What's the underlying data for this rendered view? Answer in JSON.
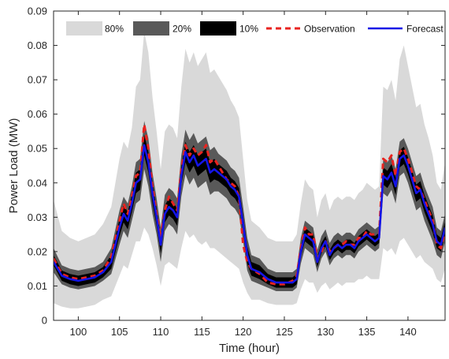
{
  "chart_data": {
    "type": "line",
    "xlabel": "Time (hour)",
    "ylabel": "Power Load (MW)",
    "xlim": [
      97,
      144.5
    ],
    "ylim": [
      0,
      0.09
    ],
    "xticks": [
      100,
      105,
      110,
      115,
      120,
      125,
      130,
      135,
      140
    ],
    "yticks": [
      0,
      0.01,
      0.02,
      0.03,
      0.04,
      0.05,
      0.06,
      0.07,
      0.08,
      0.09
    ],
    "xtick_labels": [
      "100",
      "105",
      "110",
      "115",
      "120",
      "125",
      "130",
      "135",
      "140"
    ],
    "ytick_labels": [
      "0",
      "0.01",
      "0.02",
      "0.03",
      "0.04",
      "0.05",
      "0.06",
      "0.07",
      "0.08",
      "0.09"
    ],
    "grid": false,
    "legend_position": "top",
    "legend": [
      "80%",
      "20%",
      "10%",
      "Observation",
      "Forecast"
    ],
    "colors": {
      "band_80": "#d9d9d9",
      "band_20": "#595959",
      "band_10": "#000000",
      "observation": "#e8231f",
      "forecast": "#1414e6"
    },
    "x": [
      97,
      98,
      99,
      100,
      101,
      102,
      103,
      104,
      105,
      105.5,
      106,
      106.5,
      107,
      107.5,
      108,
      108.5,
      109,
      109.5,
      110,
      110.5,
      111,
      111.5,
      112,
      112.5,
      113,
      113.5,
      114,
      114.5,
      115,
      115.5,
      116,
      116.5,
      117,
      117.5,
      118,
      118.5,
      119,
      119.5,
      120,
      120.5,
      121,
      122,
      123,
      124,
      125,
      126,
      126.5,
      127,
      127.5,
      128,
      128.5,
      129,
      129.5,
      130,
      130.5,
      131,
      131.5,
      132,
      132.5,
      133,
      133.5,
      134,
      134.5,
      135,
      135.5,
      136,
      136.5,
      137,
      137.5,
      138,
      138.5,
      139,
      139.5,
      140,
      140.5,
      141,
      141.5,
      142,
      142.5,
      143,
      143.5,
      144,
      144.5
    ],
    "series": [
      {
        "name": "Forecast",
        "values": [
          0.017,
          0.013,
          0.012,
          0.0115,
          0.012,
          0.0125,
          0.014,
          0.017,
          0.027,
          0.031,
          0.029,
          0.034,
          0.04,
          0.041,
          0.051,
          0.046,
          0.037,
          0.03,
          0.022,
          0.031,
          0.033,
          0.032,
          0.03,
          0.042,
          0.049,
          0.046,
          0.048,
          0.045,
          0.046,
          0.047,
          0.043,
          0.044,
          0.043,
          0.042,
          0.041,
          0.039,
          0.038,
          0.036,
          0.028,
          0.019,
          0.015,
          0.014,
          0.012,
          0.011,
          0.011,
          0.011,
          0.012,
          0.02,
          0.025,
          0.024,
          0.023,
          0.017,
          0.021,
          0.023,
          0.019,
          0.021,
          0.022,
          0.021,
          0.022,
          0.022,
          0.021,
          0.023,
          0.024,
          0.025,
          0.024,
          0.023,
          0.024,
          0.042,
          0.041,
          0.043,
          0.039,
          0.047,
          0.048,
          0.045,
          0.041,
          0.037,
          0.038,
          0.034,
          0.031,
          0.028,
          0.023,
          0.022,
          0.027
        ]
      },
      {
        "name": "Observation",
        "values": [
          0.018,
          0.0135,
          0.0125,
          0.012,
          0.0125,
          0.013,
          0.0145,
          0.0185,
          0.029,
          0.034,
          0.031,
          0.036,
          0.042,
          0.043,
          0.057,
          0.05,
          0.039,
          0.031,
          0.024,
          0.032,
          0.036,
          0.034,
          0.032,
          0.044,
          0.051,
          0.048,
          0.05,
          0.048,
          0.049,
          0.051,
          0.046,
          0.047,
          0.045,
          0.043,
          0.041,
          0.04,
          0.039,
          0.036,
          0.022,
          0.017,
          0.015,
          0.0135,
          0.011,
          0.0105,
          0.0105,
          0.0115,
          0.013,
          0.021,
          0.027,
          0.025,
          0.025,
          0.018,
          0.02,
          0.023,
          0.02,
          0.021,
          0.022,
          0.022,
          0.023,
          0.022,
          0.022,
          0.024,
          0.024,
          0.026,
          0.025,
          0.025,
          0.025,
          0.047,
          0.046,
          0.048,
          0.042,
          0.049,
          0.05,
          0.047,
          0.043,
          0.039,
          0.038,
          0.035,
          0.032,
          0.029,
          0.022,
          0.021,
          0.026
        ]
      },
      {
        "name": "10%",
        "lower": [
          0.016,
          0.0115,
          0.0105,
          0.01,
          0.0105,
          0.011,
          0.0125,
          0.015,
          0.0245,
          0.0285,
          0.0265,
          0.0315,
          0.037,
          0.038,
          0.048,
          0.043,
          0.034,
          0.0275,
          0.0195,
          0.0285,
          0.0305,
          0.0295,
          0.0275,
          0.0395,
          0.046,
          0.043,
          0.045,
          0.042,
          0.043,
          0.044,
          0.04,
          0.041,
          0.0405,
          0.0395,
          0.0385,
          0.0365,
          0.0355,
          0.0335,
          0.0255,
          0.0165,
          0.013,
          0.012,
          0.0105,
          0.0095,
          0.0095,
          0.0095,
          0.0105,
          0.0185,
          0.023,
          0.022,
          0.021,
          0.0155,
          0.0195,
          0.0215,
          0.0175,
          0.0195,
          0.0205,
          0.0195,
          0.0205,
          0.0205,
          0.0195,
          0.0215,
          0.0225,
          0.0235,
          0.0225,
          0.0215,
          0.0225,
          0.0395,
          0.0385,
          0.0405,
          0.0365,
          0.0445,
          0.0455,
          0.0425,
          0.0385,
          0.0345,
          0.0355,
          0.0315,
          0.0285,
          0.0255,
          0.021,
          0.02,
          0.025
        ],
        "upper": [
          0.019,
          0.0145,
          0.0135,
          0.013,
          0.0135,
          0.014,
          0.0155,
          0.019,
          0.0295,
          0.0335,
          0.0315,
          0.0365,
          0.043,
          0.044,
          0.054,
          0.049,
          0.04,
          0.0325,
          0.0245,
          0.0335,
          0.0355,
          0.0345,
          0.0325,
          0.0445,
          0.052,
          0.049,
          0.051,
          0.048,
          0.049,
          0.05,
          0.046,
          0.047,
          0.0455,
          0.0445,
          0.0435,
          0.0415,
          0.0405,
          0.0385,
          0.0305,
          0.0215,
          0.017,
          0.016,
          0.0135,
          0.0125,
          0.0125,
          0.0125,
          0.0135,
          0.0215,
          0.027,
          0.026,
          0.025,
          0.0185,
          0.0225,
          0.0245,
          0.0205,
          0.0225,
          0.0235,
          0.0225,
          0.0235,
          0.0235,
          0.0225,
          0.0245,
          0.0255,
          0.0265,
          0.0255,
          0.0245,
          0.0255,
          0.0445,
          0.0435,
          0.0455,
          0.0415,
          0.0495,
          0.0505,
          0.0475,
          0.0435,
          0.0395,
          0.0405,
          0.0365,
          0.0335,
          0.0305,
          0.025,
          0.024,
          0.029
        ]
      },
      {
        "name": "20%",
        "lower": [
          0.014,
          0.0105,
          0.0095,
          0.009,
          0.0095,
          0.01,
          0.0115,
          0.0135,
          0.022,
          0.026,
          0.024,
          0.029,
          0.034,
          0.035,
          0.044,
          0.039,
          0.031,
          0.025,
          0.017,
          0.026,
          0.028,
          0.027,
          0.025,
          0.036,
          0.0425,
          0.0395,
          0.0415,
          0.0385,
          0.0395,
          0.0405,
          0.0365,
          0.0375,
          0.0375,
          0.0365,
          0.0355,
          0.0335,
          0.0325,
          0.0305,
          0.023,
          0.0145,
          0.0115,
          0.0105,
          0.0095,
          0.0085,
          0.0085,
          0.0085,
          0.0095,
          0.0165,
          0.021,
          0.02,
          0.019,
          0.014,
          0.018,
          0.02,
          0.016,
          0.018,
          0.019,
          0.018,
          0.019,
          0.019,
          0.018,
          0.02,
          0.021,
          0.022,
          0.021,
          0.02,
          0.021,
          0.037,
          0.036,
          0.038,
          0.034,
          0.042,
          0.043,
          0.04,
          0.036,
          0.032,
          0.033,
          0.029,
          0.026,
          0.023,
          0.019,
          0.018,
          0.023
        ],
        "upper": [
          0.021,
          0.016,
          0.015,
          0.0145,
          0.015,
          0.0155,
          0.017,
          0.021,
          0.032,
          0.036,
          0.034,
          0.039,
          0.046,
          0.047,
          0.058,
          0.053,
          0.043,
          0.0355,
          0.027,
          0.0365,
          0.0385,
          0.0375,
          0.0355,
          0.048,
          0.0555,
          0.0525,
          0.0545,
          0.0515,
          0.0525,
          0.0535,
          0.0495,
          0.0505,
          0.0485,
          0.0475,
          0.0465,
          0.0445,
          0.0435,
          0.0415,
          0.033,
          0.024,
          0.019,
          0.018,
          0.015,
          0.014,
          0.014,
          0.014,
          0.015,
          0.024,
          0.029,
          0.028,
          0.027,
          0.0205,
          0.0245,
          0.0265,
          0.0225,
          0.0245,
          0.0255,
          0.0245,
          0.0255,
          0.0255,
          0.0245,
          0.0265,
          0.0275,
          0.0285,
          0.0275,
          0.0265,
          0.0275,
          0.047,
          0.046,
          0.048,
          0.044,
          0.052,
          0.053,
          0.05,
          0.046,
          0.042,
          0.043,
          0.039,
          0.036,
          0.033,
          0.027,
          0.026,
          0.031
        ]
      },
      {
        "name": "80%",
        "lower": [
          0.005,
          0.004,
          0.0035,
          0.0035,
          0.004,
          0.0045,
          0.006,
          0.007,
          0.013,
          0.016,
          0.015,
          0.019,
          0.023,
          0.023,
          0.027,
          0.025,
          0.021,
          0.016,
          0.01,
          0.016,
          0.017,
          0.016,
          0.015,
          0.021,
          0.026,
          0.024,
          0.025,
          0.023,
          0.022,
          0.023,
          0.021,
          0.021,
          0.02,
          0.019,
          0.018,
          0.017,
          0.016,
          0.015,
          0.011,
          0.008,
          0.006,
          0.006,
          0.005,
          0.0045,
          0.0045,
          0.0045,
          0.005,
          0.009,
          0.012,
          0.011,
          0.011,
          0.008,
          0.01,
          0.011,
          0.009,
          0.01,
          0.011,
          0.01,
          0.011,
          0.011,
          0.011,
          0.012,
          0.012,
          0.013,
          0.012,
          0.012,
          0.012,
          0.021,
          0.02,
          0.021,
          0.019,
          0.023,
          0.024,
          0.022,
          0.02,
          0.018,
          0.019,
          0.017,
          0.016,
          0.015,
          0.012,
          0.011,
          0.015
        ],
        "upper": [
          0.035,
          0.026,
          0.024,
          0.023,
          0.024,
          0.025,
          0.028,
          0.033,
          0.047,
          0.052,
          0.05,
          0.056,
          0.068,
          0.07,
          0.084,
          0.078,
          0.065,
          0.055,
          0.044,
          0.055,
          0.057,
          0.056,
          0.053,
          0.068,
          0.079,
          0.075,
          0.078,
          0.074,
          0.076,
          0.078,
          0.072,
          0.073,
          0.071,
          0.069,
          0.067,
          0.064,
          0.062,
          0.059,
          0.047,
          0.035,
          0.029,
          0.027,
          0.024,
          0.023,
          0.023,
          0.023,
          0.025,
          0.034,
          0.041,
          0.039,
          0.038,
          0.03,
          0.035,
          0.037,
          0.032,
          0.035,
          0.036,
          0.035,
          0.036,
          0.036,
          0.035,
          0.037,
          0.038,
          0.04,
          0.039,
          0.038,
          0.039,
          0.068,
          0.067,
          0.07,
          0.064,
          0.076,
          0.08,
          0.074,
          0.068,
          0.062,
          0.063,
          0.057,
          0.053,
          0.048,
          0.04,
          0.038,
          0.046
        ]
      }
    ]
  }
}
